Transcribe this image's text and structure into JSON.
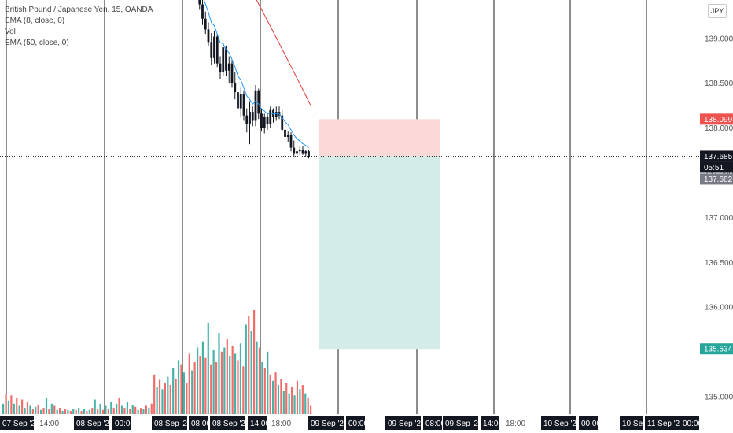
{
  "legend": {
    "symbol_line": "British Pound / Japanese Yen, 15, OANDA",
    "ema8": "EMA (8, close, 0)",
    "vol": "Vol",
    "ema50": "EMA (50, close, 0)"
  },
  "currency_button": "JPY",
  "colors": {
    "up": "#26a69a",
    "down": "#ef5350",
    "candle": "#131722",
    "ema8": "#2196f3",
    "ema50": "#e53935",
    "stop_zone": "#fcd9d9",
    "target_zone": "#d3ece8",
    "stop_badge": "#ef5350",
    "target_badge": "#26a69a",
    "price_badge": "#131722"
  },
  "price_badges": {
    "stop": "138.099",
    "last": "137.685",
    "countdown": "05:51",
    "prev": "137.682",
    "target": "135.534"
  },
  "chart_data": {
    "type": "candlestick",
    "symbol": "GBPJPY",
    "interval": "15",
    "y_axis": {
      "ticks": [
        "139.000",
        "138.500",
        "138.000",
        "137.500",
        "137.000",
        "136.500",
        "136.000",
        "135.000"
      ],
      "range": [
        134.92,
        139.72
      ]
    },
    "x_axis": {
      "labels": [
        "07 Sep '20",
        "14:00",
        "08 Sep '20",
        "00:00",
        "08 Sep '20",
        "08:00",
        "08 Sep '20",
        "14:00",
        "18:00",
        "09 Sep '20",
        "00:00",
        "09 Sep '20",
        "08:00",
        "09 Sep '20",
        "14:00",
        "18:00",
        "10 Sep '20",
        "00:00",
        "10 Sep",
        "11 Sep '20",
        "00:00"
      ]
    },
    "position": {
      "type": "short",
      "entry": 137.685,
      "stop": 138.099,
      "target": 135.534
    },
    "candles": [
      {
        "t": "08 Sep '20 07:45",
        "o": 139.72,
        "h": 139.78,
        "l": 139.55,
        "c": 139.58
      },
      {
        "t": "08 Sep '20 08:00",
        "o": 139.58,
        "h": 139.64,
        "l": 139.32,
        "c": 139.38
      },
      {
        "t": "08 Sep '20 08:15",
        "o": 139.38,
        "h": 139.45,
        "l": 139.15,
        "c": 139.22
      },
      {
        "t": "08 Sep '20 08:30",
        "o": 139.22,
        "h": 139.3,
        "l": 139.05,
        "c": 139.1
      },
      {
        "t": "08 Sep '20 08:45",
        "o": 139.1,
        "h": 139.18,
        "l": 138.92,
        "c": 138.96
      },
      {
        "t": "08 Sep '20 09:00",
        "o": 138.96,
        "h": 139.06,
        "l": 138.7,
        "c": 138.78
      },
      {
        "t": "08 Sep '20 09:15",
        "o": 138.78,
        "h": 139.08,
        "l": 138.72,
        "c": 139.02
      },
      {
        "t": "08 Sep '20 09:30",
        "o": 139.02,
        "h": 139.05,
        "l": 138.68,
        "c": 138.72
      },
      {
        "t": "08 Sep '20 09:45",
        "o": 138.72,
        "h": 138.8,
        "l": 138.55,
        "c": 138.62
      },
      {
        "t": "08 Sep '20 10:00",
        "o": 138.62,
        "h": 138.95,
        "l": 138.58,
        "c": 138.9
      },
      {
        "t": "08 Sep '20 10:15",
        "o": 138.9,
        "h": 138.92,
        "l": 138.58,
        "c": 138.64
      },
      {
        "t": "08 Sep '20 10:30",
        "o": 138.64,
        "h": 138.8,
        "l": 138.5,
        "c": 138.72
      },
      {
        "t": "08 Sep '20 10:45",
        "o": 138.72,
        "h": 138.76,
        "l": 138.45,
        "c": 138.5
      },
      {
        "t": "08 Sep '20 11:00",
        "o": 138.5,
        "h": 138.62,
        "l": 138.32,
        "c": 138.4
      },
      {
        "t": "08 Sep '20 11:15",
        "o": 138.4,
        "h": 138.48,
        "l": 138.18,
        "c": 138.22
      },
      {
        "t": "08 Sep '20 11:30",
        "o": 138.22,
        "h": 138.45,
        "l": 138.12,
        "c": 138.38
      },
      {
        "t": "08 Sep '20 11:45",
        "o": 138.38,
        "h": 138.42,
        "l": 138.08,
        "c": 138.14
      },
      {
        "t": "08 Sep '20 12:00",
        "o": 138.14,
        "h": 138.22,
        "l": 137.95,
        "c": 138.05
      },
      {
        "t": "08 Sep '20 12:15",
        "o": 138.05,
        "h": 138.3,
        "l": 137.82,
        "c": 138.18
      },
      {
        "t": "08 Sep '20 12:30",
        "o": 138.18,
        "h": 138.24,
        "l": 138.02,
        "c": 138.08
      },
      {
        "t": "08 Sep '20 12:45",
        "o": 138.08,
        "h": 138.48,
        "l": 138.02,
        "c": 138.42
      },
      {
        "t": "08 Sep '20 13:00",
        "o": 138.42,
        "h": 138.44,
        "l": 138.1,
        "c": 138.16
      },
      {
        "t": "08 Sep '20 13:15",
        "o": 138.16,
        "h": 138.22,
        "l": 137.96,
        "c": 138.0
      },
      {
        "t": "08 Sep '20 13:30",
        "o": 138.0,
        "h": 138.16,
        "l": 137.94,
        "c": 138.12
      },
      {
        "t": "08 Sep '20 13:45",
        "o": 138.12,
        "h": 138.16,
        "l": 137.98,
        "c": 138.04
      },
      {
        "t": "08 Sep '20 14:00",
        "o": 138.04,
        "h": 138.24,
        "l": 138.0,
        "c": 138.2
      },
      {
        "t": "08 Sep '20 14:15",
        "o": 138.2,
        "h": 138.22,
        "l": 138.06,
        "c": 138.12
      },
      {
        "t": "08 Sep '20 14:30",
        "o": 138.12,
        "h": 138.24,
        "l": 138.08,
        "c": 138.18
      },
      {
        "t": "08 Sep '20 14:45",
        "o": 138.18,
        "h": 138.24,
        "l": 138.1,
        "c": 138.14
      },
      {
        "t": "08 Sep '20 15:00",
        "o": 138.14,
        "h": 138.2,
        "l": 137.96,
        "c": 137.98
      },
      {
        "t": "08 Sep '20 15:15",
        "o": 137.98,
        "h": 138.02,
        "l": 137.86,
        "c": 137.9
      },
      {
        "t": "08 Sep '20 15:30",
        "o": 137.9,
        "h": 137.96,
        "l": 137.84,
        "c": 137.92
      },
      {
        "t": "08 Sep '20 15:45",
        "o": 137.92,
        "h": 137.95,
        "l": 137.74,
        "c": 137.78
      },
      {
        "t": "08 Sep '20 16:00",
        "o": 137.78,
        "h": 137.86,
        "l": 137.68,
        "c": 137.72
      },
      {
        "t": "08 Sep '20 16:15",
        "o": 137.72,
        "h": 137.78,
        "l": 137.68,
        "c": 137.74
      },
      {
        "t": "08 Sep '20 16:30",
        "o": 137.74,
        "h": 137.8,
        "l": 137.7,
        "c": 137.76
      },
      {
        "t": "08 Sep '20 16:45",
        "o": 137.76,
        "h": 137.8,
        "l": 137.7,
        "c": 137.72
      },
      {
        "t": "08 Sep '20 17:00",
        "o": 137.72,
        "h": 137.76,
        "l": 137.68,
        "c": 137.74
      },
      {
        "t": "08 Sep '20 17:15",
        "o": 137.74,
        "h": 137.76,
        "l": 137.66,
        "c": 137.685
      }
    ],
    "volume_bars": [
      {
        "v": 0.1,
        "d": "u"
      },
      {
        "v": 0.2,
        "d": "d"
      },
      {
        "v": 0.13,
        "d": "u"
      },
      {
        "v": 0.18,
        "d": "d"
      },
      {
        "v": 0.1,
        "d": "u"
      },
      {
        "v": 0.16,
        "d": "d"
      },
      {
        "v": 0.08,
        "d": "u"
      },
      {
        "v": 0.14,
        "d": "d"
      },
      {
        "v": 0.06,
        "d": "u"
      },
      {
        "v": 0.12,
        "d": "d"
      },
      {
        "v": 0.08,
        "d": "u"
      },
      {
        "v": 0.05,
        "d": "d"
      },
      {
        "v": 0.07,
        "d": "u"
      },
      {
        "v": 0.09,
        "d": "d"
      },
      {
        "v": 0.04,
        "d": "u"
      },
      {
        "v": 0.06,
        "d": "d"
      },
      {
        "v": 0.16,
        "d": "u"
      },
      {
        "v": 0.05,
        "d": "d"
      },
      {
        "v": 0.1,
        "d": "u"
      },
      {
        "v": 0.08,
        "d": "d"
      },
      {
        "v": 0.04,
        "d": "u"
      },
      {
        "v": 0.06,
        "d": "d"
      },
      {
        "v": 0.03,
        "d": "u"
      },
      {
        "v": 0.05,
        "d": "d"
      },
      {
        "v": 0.04,
        "d": "u"
      },
      {
        "v": 0.03,
        "d": "d"
      },
      {
        "v": 0.05,
        "d": "u"
      },
      {
        "v": 0.04,
        "d": "d"
      },
      {
        "v": 0.06,
        "d": "u"
      },
      {
        "v": 0.03,
        "d": "d"
      },
      {
        "v": 0.05,
        "d": "u"
      },
      {
        "v": 0.03,
        "d": "d"
      },
      {
        "v": 0.04,
        "d": "u"
      },
      {
        "v": 0.06,
        "d": "d"
      },
      {
        "v": 0.14,
        "d": "u"
      },
      {
        "v": 0.05,
        "d": "d"
      },
      {
        "v": 0.1,
        "d": "u"
      },
      {
        "v": 0.04,
        "d": "d"
      },
      {
        "v": 0.08,
        "d": "u"
      },
      {
        "v": 0.05,
        "d": "d"
      },
      {
        "v": 0.12,
        "d": "u"
      },
      {
        "v": 0.06,
        "d": "d"
      },
      {
        "v": 0.1,
        "d": "u"
      },
      {
        "v": 0.16,
        "d": "d"
      },
      {
        "v": 0.08,
        "d": "u"
      },
      {
        "v": 0.06,
        "d": "d"
      },
      {
        "v": 0.12,
        "d": "u"
      },
      {
        "v": 0.05,
        "d": "d"
      },
      {
        "v": 0.09,
        "d": "u"
      },
      {
        "v": 0.07,
        "d": "d"
      },
      {
        "v": 0.04,
        "d": "u"
      },
      {
        "v": 0.06,
        "d": "d"
      },
      {
        "v": 0.05,
        "d": "u"
      },
      {
        "v": 0.08,
        "d": "d"
      },
      {
        "v": 0.06,
        "d": "u"
      },
      {
        "v": 0.1,
        "d": "d"
      },
      {
        "v": 0.38,
        "d": "d"
      },
      {
        "v": 0.26,
        "d": "u"
      },
      {
        "v": 0.33,
        "d": "d"
      },
      {
        "v": 0.24,
        "d": "u"
      },
      {
        "v": 0.3,
        "d": "d"
      },
      {
        "v": 0.36,
        "d": "u"
      },
      {
        "v": 0.28,
        "d": "d"
      },
      {
        "v": 0.44,
        "d": "u"
      },
      {
        "v": 0.34,
        "d": "d"
      },
      {
        "v": 0.52,
        "d": "u"
      },
      {
        "v": 0.48,
        "d": "d"
      },
      {
        "v": 0.4,
        "d": "u"
      },
      {
        "v": 0.3,
        "d": "d"
      },
      {
        "v": 0.58,
        "d": "d"
      },
      {
        "v": 0.42,
        "d": "u"
      },
      {
        "v": 0.5,
        "d": "d"
      },
      {
        "v": 0.64,
        "d": "u"
      },
      {
        "v": 0.56,
        "d": "d"
      },
      {
        "v": 0.7,
        "d": "u"
      },
      {
        "v": 0.54,
        "d": "d"
      },
      {
        "v": 0.88,
        "d": "u"
      },
      {
        "v": 0.48,
        "d": "d"
      },
      {
        "v": 0.62,
        "d": "u"
      },
      {
        "v": 0.5,
        "d": "d"
      },
      {
        "v": 0.78,
        "d": "u"
      },
      {
        "v": 0.6,
        "d": "d"
      },
      {
        "v": 0.64,
        "d": "u"
      },
      {
        "v": 0.72,
        "d": "d"
      },
      {
        "v": 0.56,
        "d": "u"
      },
      {
        "v": 0.66,
        "d": "d"
      },
      {
        "v": 0.58,
        "d": "u"
      },
      {
        "v": 0.52,
        "d": "d"
      },
      {
        "v": 0.68,
        "d": "u"
      },
      {
        "v": 0.46,
        "d": "d"
      },
      {
        "v": 0.86,
        "d": "u"
      },
      {
        "v": 0.94,
        "d": "d"
      },
      {
        "v": 0.8,
        "d": "u"
      },
      {
        "v": 1.0,
        "d": "d"
      },
      {
        "v": 0.7,
        "d": "u"
      },
      {
        "v": 0.64,
        "d": "d"
      },
      {
        "v": 0.5,
        "d": "u"
      },
      {
        "v": 0.44,
        "d": "d"
      },
      {
        "v": 0.6,
        "d": "u"
      },
      {
        "v": 0.38,
        "d": "d"
      },
      {
        "v": 0.32,
        "d": "u"
      },
      {
        "v": 0.4,
        "d": "d"
      },
      {
        "v": 0.28,
        "d": "u"
      },
      {
        "v": 0.34,
        "d": "d"
      },
      {
        "v": 0.22,
        "d": "u"
      },
      {
        "v": 0.3,
        "d": "d"
      },
      {
        "v": 0.2,
        "d": "u"
      },
      {
        "v": 0.26,
        "d": "d"
      },
      {
        "v": 0.18,
        "d": "u"
      },
      {
        "v": 0.32,
        "d": "d"
      },
      {
        "v": 0.24,
        "d": "u"
      },
      {
        "v": 0.28,
        "d": "d"
      },
      {
        "v": 0.2,
        "d": "u"
      },
      {
        "v": 0.16,
        "d": "d"
      },
      {
        "v": 0.08,
        "d": "d"
      }
    ]
  }
}
